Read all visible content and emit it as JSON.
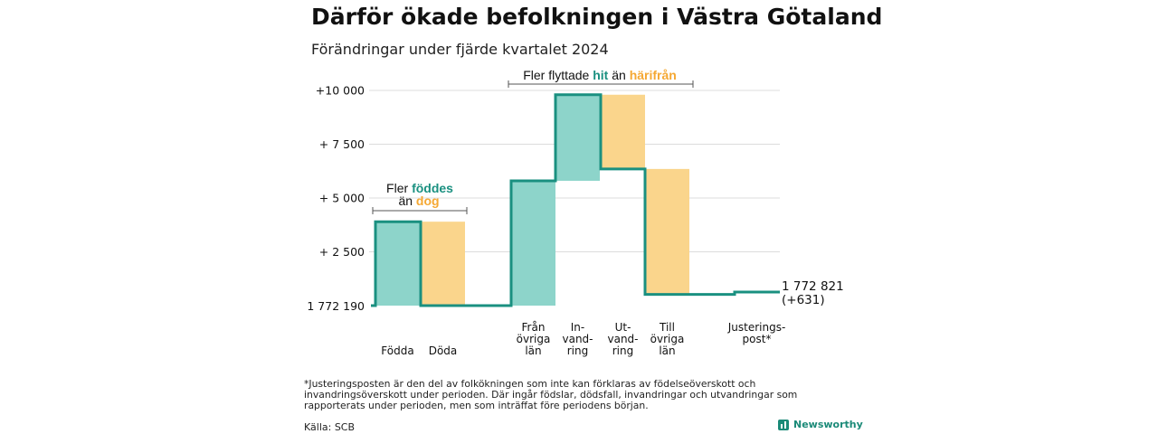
{
  "header": {
    "title": "Därför ökade befolkningen i Västra Götaland",
    "subtitle": "Förändringar under fjärde kvartalet 2024"
  },
  "chart_data": {
    "type": "bar",
    "subtype": "waterfall",
    "base_label": "1 772 190",
    "end_label_line1": "1 772 821",
    "end_label_line2": "(+631)",
    "base_population": 1772190,
    "end_population": 1772821,
    "ylim": [
      -400,
      10500
    ],
    "yticks": [
      {
        "value": 10000,
        "label": "+10 000"
      },
      {
        "value": 7500,
        "label": "+ 7 500"
      },
      {
        "value": 5000,
        "label": "+ 5 000"
      },
      {
        "value": 2500,
        "label": "+ 2 500"
      }
    ],
    "grid": true,
    "steps": [
      {
        "category": "Födda",
        "label_lines": [
          "Födda"
        ],
        "start": 0,
        "end": 3900,
        "kind": "increase"
      },
      {
        "category": "Döda",
        "label_lines": [
          "Döda"
        ],
        "start": 3900,
        "end": 0,
        "kind": "decrease"
      },
      {
        "category": "Från övriga län",
        "label_lines": [
          "Från",
          "övriga",
          "län"
        ],
        "start": 0,
        "end": 5800,
        "kind": "increase"
      },
      {
        "category": "Invandring",
        "label_lines": [
          "In-",
          "vand-",
          "ring"
        ],
        "start": 5800,
        "end": 9800,
        "kind": "increase"
      },
      {
        "category": "Utvandring",
        "label_lines": [
          "Ut-",
          "vand-",
          "ring"
        ],
        "start": 9800,
        "end": 6350,
        "kind": "decrease"
      },
      {
        "category": "Till övriga län",
        "label_lines": [
          "Till",
          "övriga",
          "län"
        ],
        "start": 6350,
        "end": 520,
        "kind": "decrease"
      },
      {
        "category": "Justeringspost*",
        "label_lines": [
          "Justerings-",
          "post*"
        ],
        "start": 520,
        "end": 631,
        "kind": "adjustment"
      }
    ],
    "annotations": {
      "births": {
        "prefix": "Fler",
        "highlight1": "föddes",
        "middle": "än",
        "highlight2": "dog"
      },
      "migration": {
        "prefix": "Fler flyttade",
        "highlight1": "hit",
        "middle": "än",
        "highlight2": "härifrån"
      }
    },
    "colors": {
      "increase": "#8dd4ca",
      "decrease": "#fad58c",
      "line": "#1a9080",
      "teal_text": "#1a9080",
      "orange_text": "#f5a833"
    }
  },
  "footer": {
    "footnote": "*Justeringsposten är den del av folkökningen som inte kan förklaras av födelseöverskott och invandringsöverskott under perioden. Där ingår födslar, dödsfall, invandringar och utvandringar som rapporterats under perioden, men som inträffat före periodens början.",
    "source": "Källa: SCB",
    "brand": "Newsworthy"
  }
}
